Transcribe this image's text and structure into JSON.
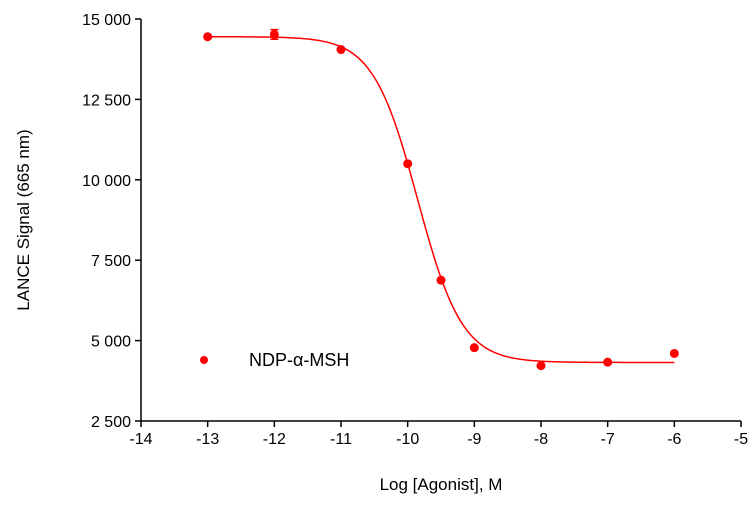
{
  "chart_data": {
    "type": "scatter",
    "xlabel": "Log [Agonist], M",
    "ylabel": "LANCE Signal (665 nm)",
    "xlim": [
      -14,
      -5
    ],
    "ylim": [
      2500,
      15000
    ],
    "x_ticks": [
      -14,
      -13,
      -12,
      -11,
      -10,
      -9,
      -8,
      -7,
      -6,
      -5
    ],
    "x_tick_labels": [
      "-14",
      "-13",
      "-12",
      "-11",
      "-10",
      "-9",
      "-8",
      "-7",
      "-6",
      "-5"
    ],
    "y_ticks": [
      2500,
      5000,
      7500,
      10000,
      12500,
      15000
    ],
    "y_tick_labels": [
      "2 500",
      "5 000",
      "7 500",
      "10 000",
      "12 500",
      "15 000"
    ],
    "grid": false,
    "legend_position": "bottom-left",
    "series": [
      {
        "name": "NDP-α-MSH",
        "color": "#ff0000",
        "x": [
          -13,
          -12,
          -11,
          -10,
          -9.5,
          -9,
          -8,
          -7,
          -6
        ],
        "y": [
          14450,
          14520,
          14050,
          10500,
          6880,
          4780,
          4220,
          4330,
          4600
        ],
        "error": [
          0,
          150,
          0,
          0,
          0,
          0,
          0,
          0,
          0
        ],
        "fit": {
          "model": "four-parameter logistic",
          "top": 14450,
          "bottom": 4320,
          "log_ec50": -9.85,
          "hill_slope": -1.3,
          "x_range": [
            -13,
            -6
          ]
        }
      }
    ]
  }
}
